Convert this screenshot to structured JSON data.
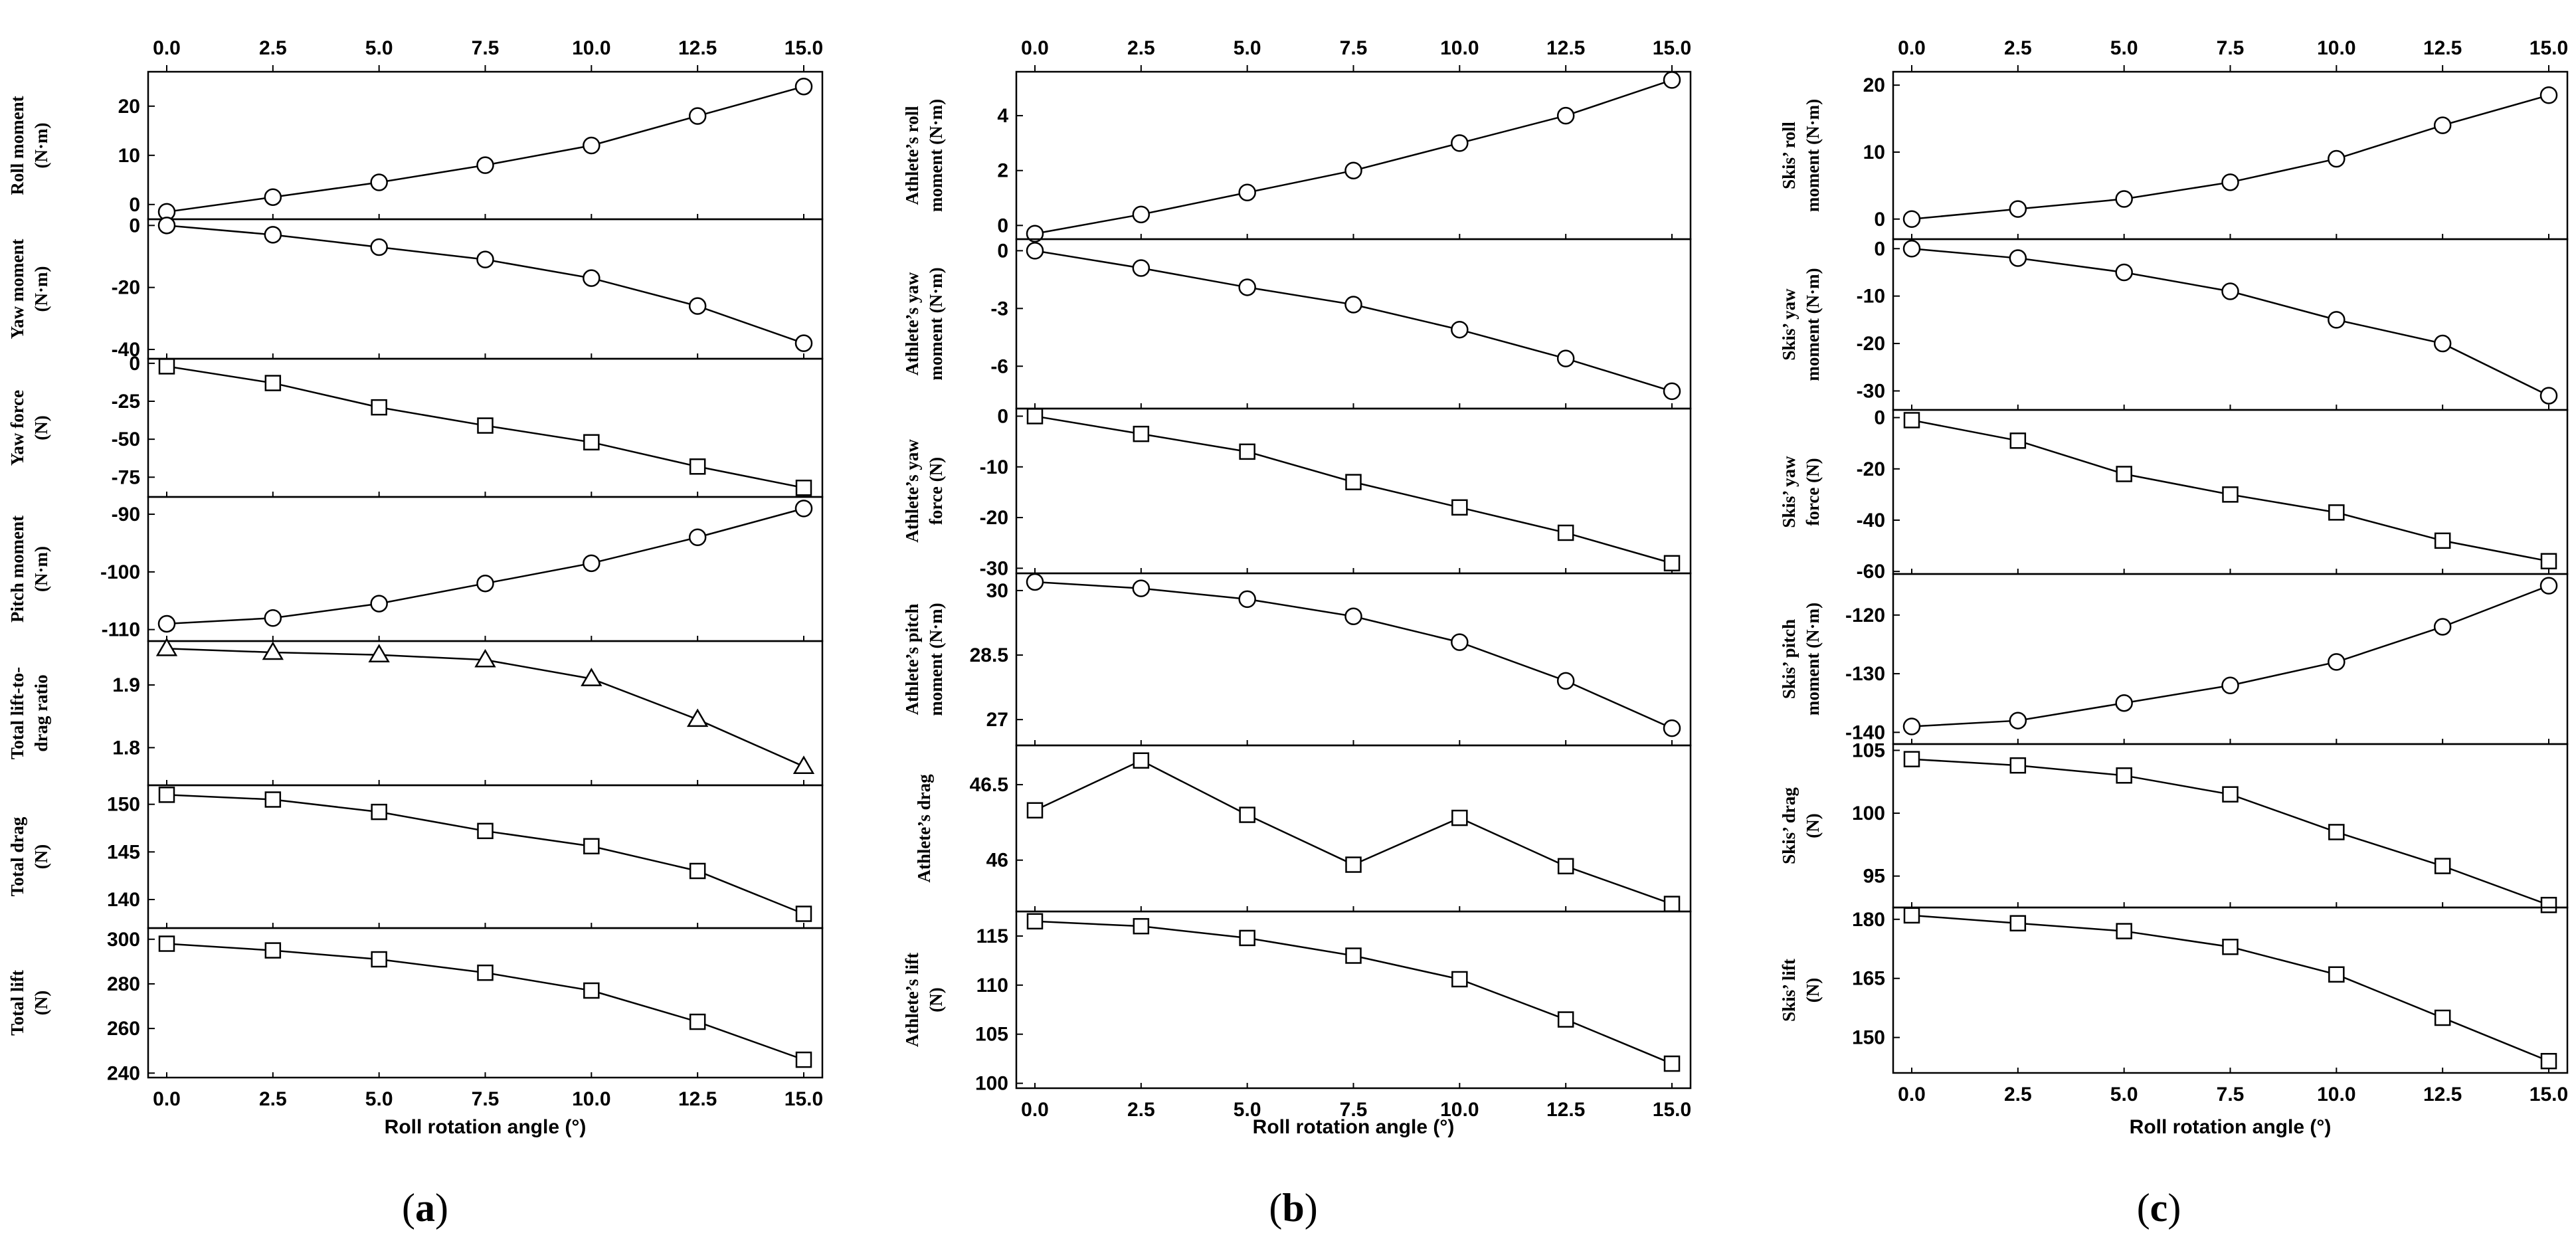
{
  "chart_data": [
    {
      "caption": "(a)",
      "type": "line",
      "x_ticks": [
        0.0,
        2.5,
        5.0,
        7.5,
        10.0,
        12.5,
        15.0
      ],
      "x_tick_labels": [
        "0.0",
        "2.5",
        "5.0",
        "7.5",
        "10.0",
        "12.5",
        "15.0"
      ],
      "xlabel": "Roll rotation angle (°)",
      "x": [
        0.0,
        2.5,
        5.0,
        7.5,
        10.0,
        12.5,
        15.0
      ],
      "panels": [
        {
          "ylabel": [
            "Roll moment",
            "(N·m)"
          ],
          "marker": "circle",
          "ylim": [
            -3,
            27
          ],
          "yticks": [
            0,
            10,
            20
          ],
          "values": [
            -1.5,
            1.5,
            4.5,
            8,
            12,
            18,
            24
          ]
        },
        {
          "ylabel": [
            "Yaw moment",
            "(N·m)"
          ],
          "marker": "circle",
          "ylim": [
            -43,
            2
          ],
          "yticks": [
            0,
            -20,
            -40
          ],
          "values": [
            0,
            -3,
            -7,
            -11,
            -17,
            -26,
            -38
          ]
        },
        {
          "ylabel": [
            "Yaw force",
            "(N)"
          ],
          "marker": "square",
          "ylim": [
            -88,
            3
          ],
          "yticks": [
            0,
            -25,
            -50,
            -75
          ],
          "values": [
            -2,
            -13,
            -29,
            -41,
            -52,
            -68,
            -82
          ]
        },
        {
          "ylabel": [
            "Pitch moment",
            "(N·m)"
          ],
          "marker": "circle",
          "ylim": [
            -112,
            -87
          ],
          "yticks": [
            -90,
            -100,
            -110
          ],
          "values": [
            -109,
            -108,
            -105.5,
            -102,
            -98.5,
            -94,
            -89
          ]
        },
        {
          "ylabel": [
            "Total lift-to-",
            "drag ratio"
          ],
          "marker": "triangle",
          "ylim": [
            1.74,
            1.97
          ],
          "yticks": [
            1.9,
            1.8
          ],
          "values": [
            1.958,
            1.952,
            1.948,
            1.94,
            1.91,
            1.845,
            1.77
          ]
        },
        {
          "ylabel": [
            "Total drag",
            "(N)"
          ],
          "marker": "square",
          "ylim": [
            137,
            152
          ],
          "yticks": [
            150,
            145,
            140
          ],
          "values": [
            151,
            150.5,
            149.2,
            147.2,
            145.6,
            143,
            138.5
          ]
        },
        {
          "ylabel": [
            "Total lift",
            "(N)"
          ],
          "marker": "square",
          "ylim": [
            238,
            305
          ],
          "yticks": [
            300,
            280,
            260,
            240
          ],
          "values": [
            298,
            295,
            291,
            285,
            277,
            263,
            246
          ]
        }
      ]
    },
    {
      "caption": "(b)",
      "type": "line",
      "x_ticks": [
        0.0,
        2.5,
        5.0,
        7.5,
        10.0,
        12.5,
        15.0
      ],
      "x_tick_labels": [
        "0.0",
        "2.5",
        "5.0",
        "7.5",
        "10.0",
        "12.5",
        "15.0"
      ],
      "xlabel": "Roll rotation angle (°)",
      "x": [
        0.0,
        2.5,
        5.0,
        7.5,
        10.0,
        12.5,
        15.0
      ],
      "panels": [
        {
          "ylabel": [
            "Athlete’s roll",
            "moment (N·m)"
          ],
          "marker": "circle",
          "ylim": [
            -0.5,
            5.6
          ],
          "yticks": [
            0,
            2,
            4
          ],
          "values": [
            -0.3,
            0.4,
            1.2,
            2,
            3,
            4,
            5.3
          ]
        },
        {
          "ylabel": [
            "Athlete’s yaw",
            "moment (N·m)"
          ],
          "marker": "circle",
          "ylim": [
            -8.2,
            0.6
          ],
          "yticks": [
            0,
            -3,
            -6
          ],
          "values": [
            0,
            -0.9,
            -1.9,
            -2.8,
            -4.1,
            -5.6,
            -7.3
          ]
        },
        {
          "ylabel": [
            "Athlete’s yaw",
            "force (N)"
          ],
          "marker": "square",
          "ylim": [
            -31,
            1.5
          ],
          "yticks": [
            0,
            -10,
            -20,
            -30
          ],
          "values": [
            0,
            -3.5,
            -7,
            -13,
            -18,
            -23,
            -29
          ]
        },
        {
          "ylabel": [
            "Athlete’s pitch",
            "moment (N·m)"
          ],
          "marker": "circle",
          "ylim": [
            26.4,
            30.4
          ],
          "yticks": [
            30.0,
            28.5,
            27.0
          ],
          "values": [
            30.2,
            30.05,
            29.8,
            29.4,
            28.8,
            27.9,
            26.8
          ]
        },
        {
          "ylabel": [
            "Athlete’s drag"
          ],
          "marker": "square",
          "ylim": [
            45.66,
            46.76
          ],
          "yticks": [
            46.5,
            46.0
          ],
          "values": [
            46.33,
            46.66,
            46.3,
            45.97,
            46.28,
            45.96,
            45.71
          ]
        },
        {
          "ylabel": [
            "Athlete’s lift",
            "(N)"
          ],
          "marker": "square",
          "ylim": [
            99.5,
            117.5
          ],
          "yticks": [
            115,
            110,
            105,
            100
          ],
          "values": [
            116.5,
            116,
            114.8,
            113,
            110.6,
            106.5,
            102
          ]
        }
      ]
    },
    {
      "caption": "(c)",
      "type": "line",
      "x_ticks": [
        0.0,
        2.5,
        5.0,
        7.5,
        10.0,
        12.5,
        15.0
      ],
      "x_tick_labels": [
        "0.0",
        "2.5",
        "5.0",
        "7.5",
        "10.0",
        "12.5",
        "15.0"
      ],
      "xlabel": "Roll rotation angle (°)",
      "x": [
        0.0,
        2.5,
        5.0,
        7.5,
        10.0,
        12.5,
        15.0
      ],
      "panels": [
        {
          "ylabel": [
            "Skis’ roll",
            "moment (N·m)"
          ],
          "marker": "circle",
          "ylim": [
            -3,
            22
          ],
          "yticks": [
            0,
            10,
            20
          ],
          "values": [
            0,
            1.5,
            3,
            5.5,
            9,
            14,
            18.5
          ]
        },
        {
          "ylabel": [
            "Skis’ yaw",
            "moment (N·m)"
          ],
          "marker": "circle",
          "ylim": [
            -34,
            2
          ],
          "yticks": [
            0,
            -10,
            -20,
            -30
          ],
          "values": [
            0,
            -2,
            -5,
            -9,
            -15,
            -20,
            -31
          ]
        },
        {
          "ylabel": [
            "Skis’ yaw",
            "force (N)"
          ],
          "marker": "square",
          "ylim": [
            -61,
            3
          ],
          "yticks": [
            0,
            -20,
            -40,
            -60
          ],
          "values": [
            -1,
            -9,
            -22,
            -30,
            -37,
            -48,
            -56
          ]
        },
        {
          "ylabel": [
            "Skis’ pitch",
            "moment (N·m)"
          ],
          "marker": "circle",
          "ylim": [
            -142,
            -113
          ],
          "yticks": [
            -120,
            -130,
            -140
          ],
          "values": [
            -139,
            -138,
            -135,
            -132,
            -128,
            -122,
            -115
          ]
        },
        {
          "ylabel": [
            "Skis’ drag",
            "(N)"
          ],
          "marker": "square",
          "ylim": [
            92.5,
            105.5
          ],
          "yticks": [
            105,
            100,
            95
          ],
          "values": [
            104.3,
            103.8,
            103,
            101.5,
            98.5,
            95.8,
            92.7
          ]
        },
        {
          "ylabel": [
            "Skis’ lift",
            "(N)"
          ],
          "marker": "square",
          "ylim": [
            141,
            183
          ],
          "yticks": [
            180,
            165,
            150
          ],
          "values": [
            181,
            179,
            177,
            173,
            166,
            155,
            144
          ]
        }
      ]
    }
  ]
}
